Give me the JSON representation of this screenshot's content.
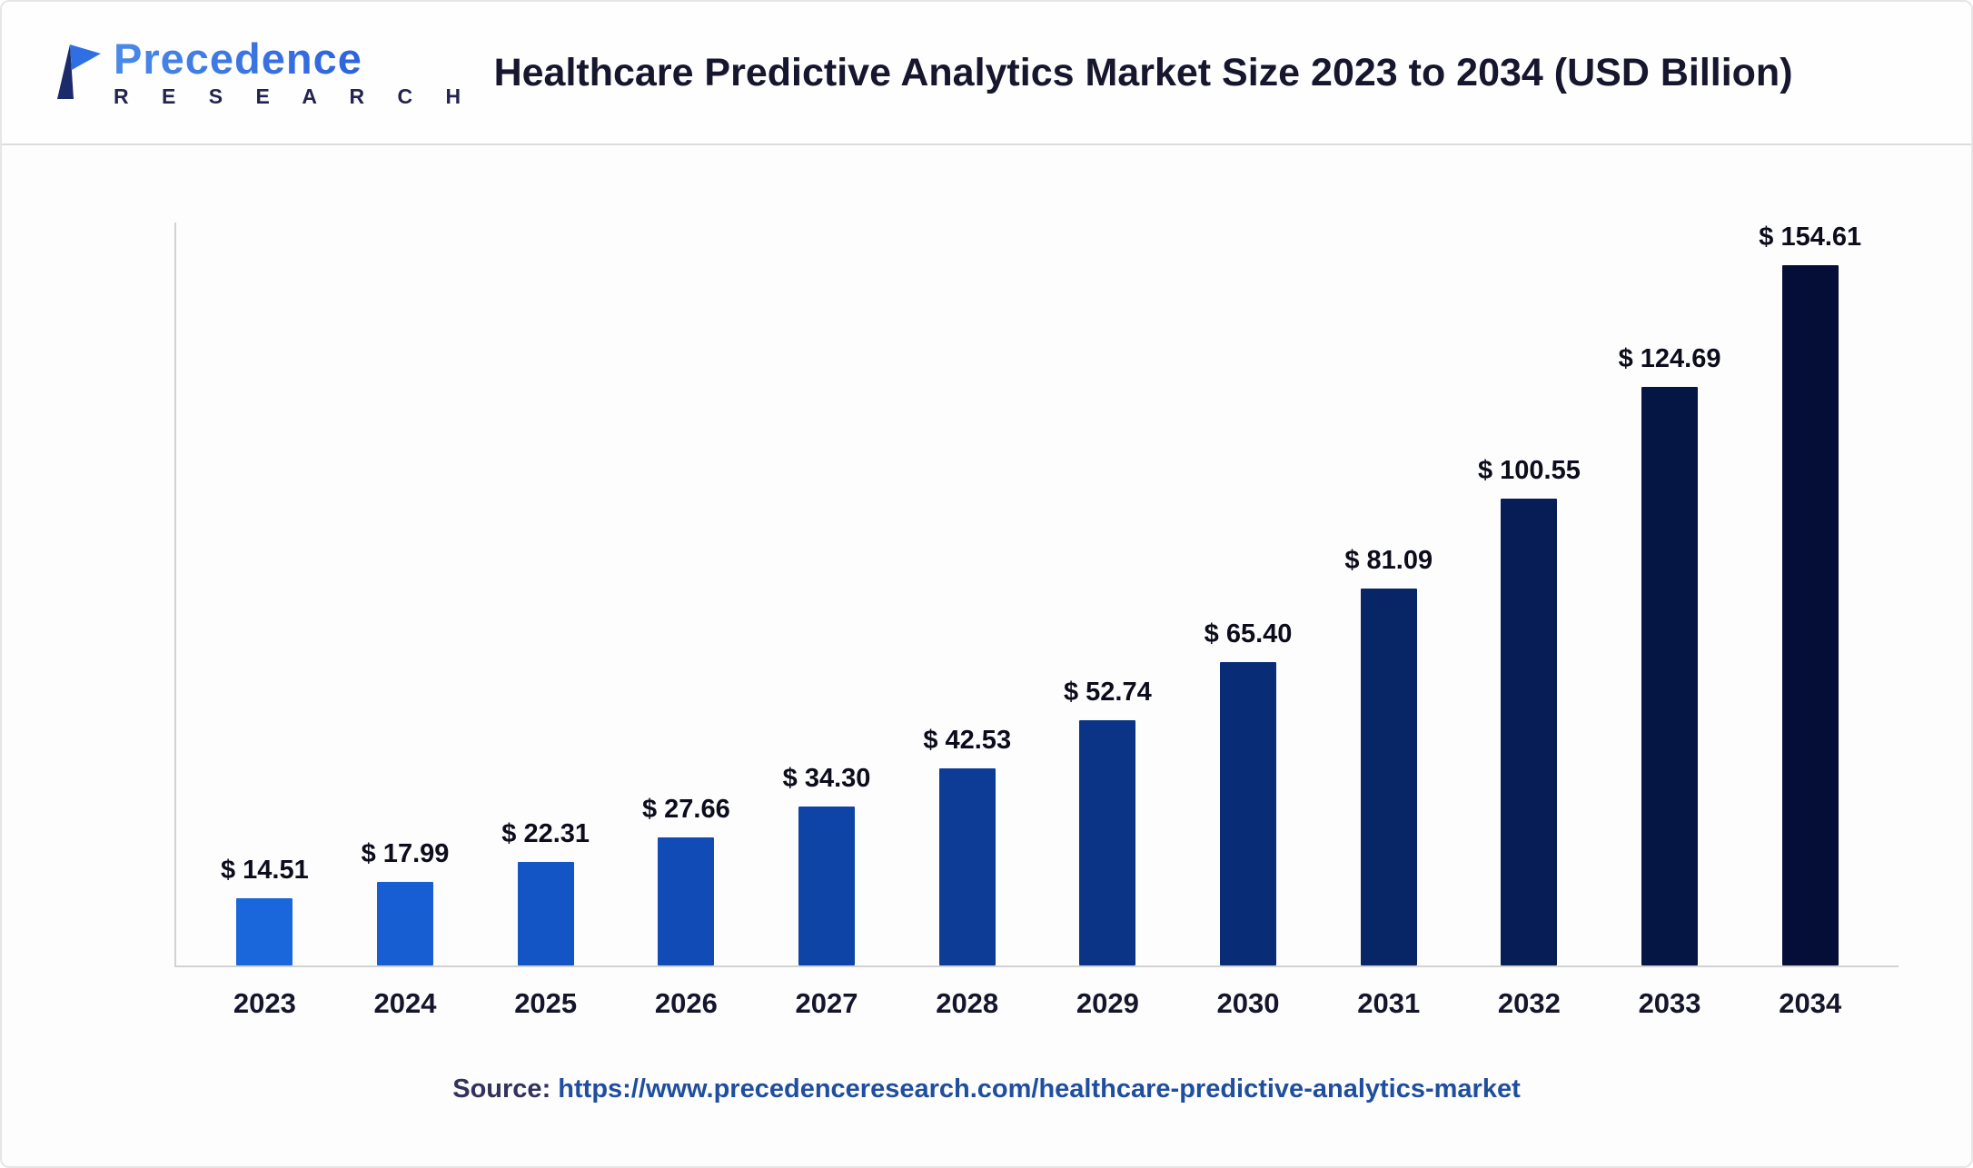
{
  "header": {
    "logo": {
      "brand": "Precedence",
      "subbrand": "R E S E A R C H"
    },
    "title": "Healthcare Predictive Analytics Market Size 2023 to 2034 (USD Billion)"
  },
  "chart_data": {
    "type": "bar",
    "title": "Healthcare Predictive Analytics Market Size 2023 to 2034 (USD Billion)",
    "categories": [
      "2023",
      "2024",
      "2025",
      "2026",
      "2027",
      "2028",
      "2029",
      "2030",
      "2031",
      "2032",
      "2033",
      "2034"
    ],
    "values": [
      14.51,
      17.99,
      22.31,
      27.66,
      34.3,
      42.53,
      52.74,
      65.4,
      81.09,
      100.55,
      124.69,
      154.61
    ],
    "labels": [
      "$ 14.51",
      "$ 17.99",
      "$ 22.31",
      "$ 27.66",
      "$ 34.30",
      "$ 42.53",
      "$ 52.74",
      "$ 65.40",
      "$ 81.09",
      "$ 100.55",
      "$ 124.69",
      "$ 154.61"
    ],
    "xlabel": "",
    "ylabel": "",
    "ylim": [
      0,
      160
    ],
    "grid": false,
    "legend": false,
    "bar_colors": [
      "#1A66DB",
      "#175ED2",
      "#1455C5",
      "#114CB6",
      "#0F44A7",
      "#0D3C97",
      "#0B3487",
      "#092C77",
      "#082566",
      "#061D55",
      "#051544",
      "#040E36"
    ]
  },
  "footer": {
    "source_label": "Source:",
    "source_url": "https://www.precedenceresearch.com/healthcare-predictive-analytics-market"
  },
  "colors": {
    "brand_blue": "#2E6BDD",
    "dark_navy": "#0A0F3C",
    "axis_gray": "#D2D2D2",
    "title_text": "#16162E"
  }
}
